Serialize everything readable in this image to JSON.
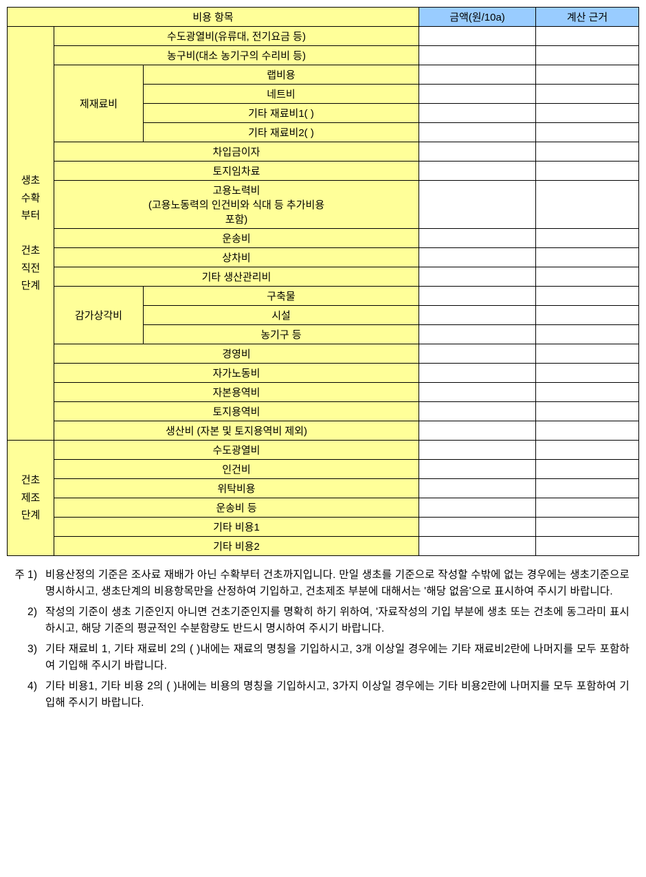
{
  "colors": {
    "yellow": "#ffff99",
    "blue": "#99ccff",
    "border": "#000000",
    "background": "#ffffff"
  },
  "typography": {
    "font_family": "Malgun Gothic",
    "font_size": 15,
    "notes_font_size": 15.5
  },
  "header": {
    "cost_item": "비용 항목",
    "amount": "금액(원/10a)",
    "basis": "계산 근거"
  },
  "stage1": {
    "label": "생초\n수확\n부터\n\n건초\n직전\n단계",
    "rows": {
      "r1": "수도광열비(유류대, 전기요금 등)",
      "r2": "농구비(대소 농기구의 수리비 등)",
      "materials_label": "제재료비",
      "r3": "랩비용",
      "r4": "네트비",
      "r5": "기타 재료비1(                          )",
      "r6": "기타 재료비2(                          )",
      "r7": "차입금이자",
      "r8": "토지임차료",
      "r9": "고용노력비\n(고용노동력의 인건비와 식대 등 추가비용\n포함)",
      "r10": "운송비",
      "r11": "상차비",
      "r12": "기타 생산관리비",
      "deprec_label": "감가상각비",
      "r13": "구축물",
      "r14": "시설",
      "r15": "농기구 등",
      "r16": "경영비",
      "r17": "자가노동비",
      "r18": "자본용역비",
      "r19": "토지용역비",
      "r20": "생산비 (자본 및 토지용역비 제외)"
    }
  },
  "stage2": {
    "label": "건초\n제조\n단계",
    "rows": {
      "r1": "수도광열비",
      "r2": "인건비",
      "r3": "위탁비용",
      "r4": "운송비 등",
      "r5": "기타 비용1",
      "r6": "기타 비용2"
    }
  },
  "notes": {
    "prefix": "주",
    "n1_num": "1)",
    "n1": "비용산정의 기준은 조사료 재배가 아닌 수확부터 건초까지입니다. 만일 생초를 기준으로 작성할 수밖에 없는 경우에는 생초기준으로 명시하시고, 생초단계의 비용항목만을 산정하여 기입하고, 건초제조 부분에 대해서는 '해당 없음'으로 표시하여 주시기 바랍니다.",
    "n2_num": "2)",
    "n2": "작성의 기준이 생초 기준인지 아니면 건초기준인지를 명확히 하기 위하여, '자료작성의 기입 부분에 생초 또는 건초에 동그라미 표시하시고, 해당 기준의 평균적인 수분함량도 반드시 명시하여 주시기 바랍니다.",
    "n3_num": "3)",
    "n3": "기타 재료비 1, 기타 재료비 2의 (    )내에는 재료의 명칭을 기입하시고, 3개 이상일 경우에는 기타 재료비2란에 나머지를 모두 포함하여 기입해 주시기 바랍니다.",
    "n4_num": "4)",
    "n4": "기타 비용1, 기타 비용 2의 (    )내에는 비용의 명칭을 기입하시고, 3가지 이상일 경우에는 기타 비용2란에 나머지를 모두 포함하여 기입해 주시기 바랍니다."
  }
}
